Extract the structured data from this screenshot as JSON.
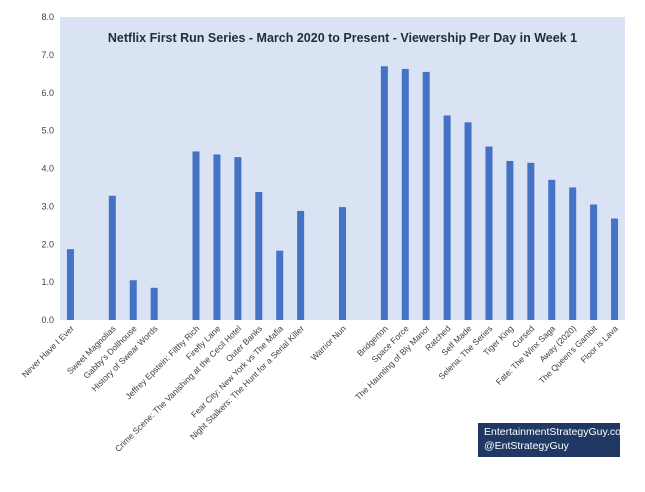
{
  "chart_data": {
    "type": "bar",
    "title": "Netflix First Run Series - March 2020 to Present -  Viewership Per Day in Week 1",
    "xlabel": "",
    "ylabel": "",
    "ylim": [
      0,
      8
    ],
    "yticks": [
      "0.0",
      "1.0",
      "2.0",
      "3.0",
      "4.0",
      "5.0",
      "6.0",
      "7.0",
      "8.0"
    ],
    "grid": false,
    "legend": "none",
    "categories": [
      "Never Have I Ever",
      "",
      "Sweet Magnolias",
      "Gabby's Dollhouse",
      "History of Swear Words",
      "",
      "Jeffrey Epstein: Filthy Rich",
      "Firefly Lane",
      "Crime Scene: The Vanishing at the Cecil Hotel",
      "Outer Banks",
      "Fear City: New York vs The Mafia",
      "Night Stalkers: The Hunt for a Serial Killer",
      "",
      "Warrior Nun",
      "",
      "Bridgerton",
      "Space Force",
      "The Haunting of Bly Manor",
      "Ratched",
      "Self Made",
      "Selena: The Series",
      "Tiger King",
      "Cursed",
      "Fate: The Winx Saga",
      "Away (2020)",
      "The Queen's Gambit",
      "Floor is Lava"
    ],
    "values": [
      1.87,
      null,
      3.28,
      1.05,
      0.85,
      null,
      4.45,
      4.37,
      4.3,
      3.38,
      1.83,
      2.88,
      null,
      2.98,
      null,
      6.7,
      6.63,
      6.55,
      5.4,
      5.22,
      4.58,
      4.2,
      4.15,
      3.7,
      3.5,
      3.05,
      2.68
    ],
    "series_color": "#4472c4",
    "plot_background": "#dae3f3",
    "annotations": {
      "credit_line_1": "EntertainmentStrategyGuy.com",
      "credit_line_2": "@EntStrategyGuy"
    },
    "annotation_colors": {
      "box_background": "#1f3864",
      "text": "#ffffff"
    }
  }
}
